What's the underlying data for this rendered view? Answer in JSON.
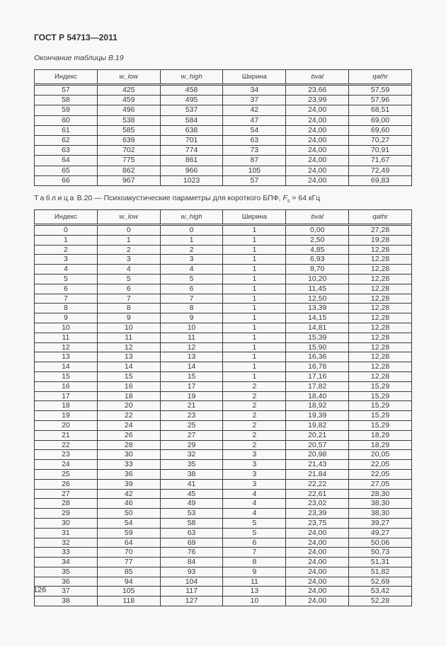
{
  "page": {
    "doc_number": "ГОСТ Р 54713—2011",
    "page_number": "126"
  },
  "table_b19": {
    "caption": "Окончание таблицы В.19",
    "headers": [
      "Индекс",
      "w_low",
      "w_high",
      "Ширина",
      "bval",
      "qathr"
    ],
    "rows": [
      [
        "57",
        "425",
        "458",
        "34",
        "23,66",
        "57,59"
      ],
      [
        "58",
        "459",
        "495",
        "37",
        "23,99",
        "57,96"
      ],
      [
        "59",
        "496",
        "537",
        "42",
        "24,00",
        "68,51"
      ],
      [
        "60",
        "538",
        "584",
        "47",
        "24,00",
        "69,00"
      ],
      [
        "61",
        "585",
        "638",
        "54",
        "24,00",
        "69,60"
      ],
      [
        "62",
        "639",
        "701",
        "63",
        "24,00",
        "70,27"
      ],
      [
        "63",
        "702",
        "774",
        "73",
        "24,00",
        "70,91"
      ],
      [
        "64",
        "775",
        "861",
        "87",
        "24,00",
        "71,67"
      ],
      [
        "65",
        "862",
        "966",
        "105",
        "24,00",
        "72,49"
      ],
      [
        "66",
        "967",
        "1023",
        "57",
        "24,00",
        "69,83"
      ]
    ]
  },
  "table_b20": {
    "caption": {
      "label": "Таблица",
      "number": "В.20",
      "dash": "—",
      "text": "Психоакустические параметры для короткого БПФ,",
      "f_symbol": "F",
      "f_subscript": "s",
      "f_value": "= 64 кГц"
    },
    "headers": [
      "Индекс",
      "w_low",
      "w_high",
      "Ширина",
      "bval",
      "qathr"
    ],
    "rows": [
      [
        "0",
        "0",
        "0",
        "1",
        "0,00",
        "27,28"
      ],
      [
        "1",
        "1",
        "1",
        "1",
        "2,50",
        "19,28"
      ],
      [
        "2",
        "2",
        "2",
        "1",
        "4,85",
        "12,28"
      ],
      [
        "3",
        "3",
        "3",
        "1",
        "6,93",
        "12,28"
      ],
      [
        "4",
        "4",
        "4",
        "1",
        "8,70",
        "12,28"
      ],
      [
        "5",
        "5",
        "5",
        "1",
        "10,20",
        "12,28"
      ],
      [
        "6",
        "6",
        "6",
        "1",
        "11,45",
        "12,28"
      ],
      [
        "7",
        "7",
        "7",
        "1",
        "12,50",
        "12,28"
      ],
      [
        "8",
        "8",
        "8",
        "1",
        "13,39",
        "12,28"
      ],
      [
        "9",
        "9",
        "9",
        "1",
        "14,15",
        "12,28"
      ],
      [
        "10",
        "10",
        "10",
        "1",
        "14,81",
        "12,28"
      ],
      [
        "11",
        "11",
        "11",
        "1",
        "15,39",
        "12,28"
      ],
      [
        "12",
        "12",
        "12",
        "1",
        "15,90",
        "12,28"
      ],
      [
        "13",
        "13",
        "13",
        "1",
        "16,36",
        "12,28"
      ],
      [
        "14",
        "14",
        "14",
        "1",
        "16,78",
        "12,28"
      ],
      [
        "15",
        "15",
        "15",
        "1",
        "17,16",
        "12,28"
      ],
      [
        "16",
        "16",
        "17",
        "2",
        "17,82",
        "15,29"
      ],
      [
        "17",
        "18",
        "19",
        "2",
        "18,40",
        "15,29"
      ],
      [
        "18",
        "20",
        "21",
        "2",
        "18,92",
        "15,29"
      ],
      [
        "19",
        "22",
        "23",
        "2",
        "19,39",
        "15,29"
      ],
      [
        "20",
        "24",
        "25",
        "2",
        "19,82",
        "15,29"
      ],
      [
        "21",
        "26",
        "27",
        "2",
        "20,21",
        "18,29"
      ],
      [
        "22",
        "28",
        "29",
        "2",
        "20,57",
        "18,29"
      ],
      [
        "23",
        "30",
        "32",
        "3",
        "20,98",
        "20,05"
      ],
      [
        "24",
        "33",
        "35",
        "3",
        "21,43",
        "22,05"
      ],
      [
        "25",
        "36",
        "38",
        "3",
        "21,84",
        "22,05"
      ],
      [
        "26",
        "39",
        "41",
        "3",
        "22,22",
        "27,05"
      ],
      [
        "27",
        "42",
        "45",
        "4",
        "22,61",
        "28,30"
      ],
      [
        "28",
        "46",
        "49",
        "4",
        "23,02",
        "38,30"
      ],
      [
        "29",
        "50",
        "53",
        "4",
        "23,39",
        "38,30"
      ],
      [
        "30",
        "54",
        "58",
        "5",
        "23,75",
        "39,27"
      ],
      [
        "31",
        "59",
        "63",
        "5",
        "24,00",
        "49,27"
      ],
      [
        "32",
        "64",
        "69",
        "6",
        "24,00",
        "50,06"
      ],
      [
        "33",
        "70",
        "76",
        "7",
        "24,00",
        "50,73"
      ],
      [
        "34",
        "77",
        "84",
        "8",
        "24,00",
        "51,31"
      ],
      [
        "35",
        "85",
        "93",
        "9",
        "24,00",
        "51,82"
      ],
      [
        "36",
        "94",
        "104",
        "11",
        "24,00",
        "52,69"
      ],
      [
        "37",
        "105",
        "117",
        "13",
        "24,00",
        "53,42"
      ],
      [
        "38",
        "118",
        "127",
        "10",
        "24,00",
        "52,28"
      ]
    ]
  }
}
